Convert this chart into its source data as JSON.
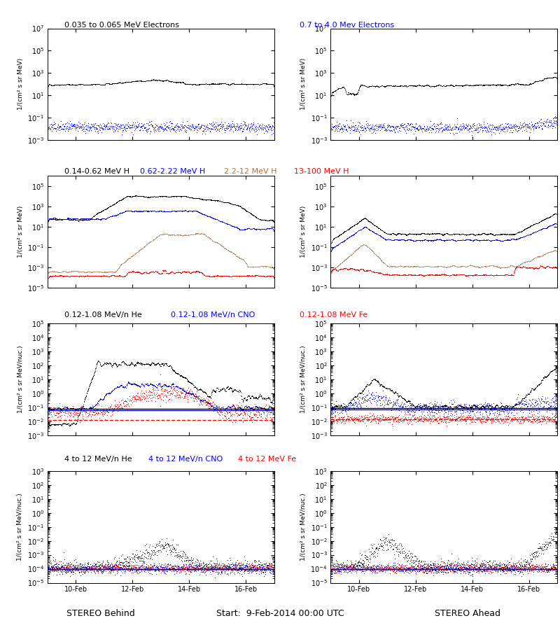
{
  "title_row1_left": "0.035 to 0.065 MeV Electrons",
  "title_row1_right": "0.7 to 4.0 Mev Electrons",
  "title_row1_right_color": "blue",
  "title_row2_parts": [
    "0.14-0.62 MeV H",
    "0.62-2.22 MeV H",
    "2.2-12 MeV H",
    "13-100 MeV H"
  ],
  "title_row2_colors": [
    "black",
    "blue",
    "#b87333",
    "red"
  ],
  "title_row3_parts": [
    "0.12-1.08 MeV/n He",
    "0.12-1.08 MeV/n CNO",
    "0.12-1.08 MeV Fe"
  ],
  "title_row3_colors": [
    "black",
    "blue",
    "red"
  ],
  "title_row4_parts": [
    "4 to 12 MeV/n He",
    "4 to 12 MeV/n CNO",
    "4 to 12 MeV Fe"
  ],
  "title_row4_colors": [
    "black",
    "blue",
    "red"
  ],
  "xlabel_center": "Start:  9-Feb-2014 00:00 UTC",
  "xlabel_left": "STEREO Behind",
  "xlabel_right": "STEREO Ahead",
  "ylabel_electrons": "1/(cm² s sr MeV)",
  "ylabel_heavy": "1/(cm² s sr MeV/nuc.)",
  "xtick_labels": [
    "10-Feb",
    "12-Feb",
    "14-Feb",
    "16-Feb"
  ],
  "row1_ylim": [
    0.001,
    10000000.0
  ],
  "row2_ylim": [
    1e-05,
    1000000.0
  ],
  "row3_ylim": [
    0.001,
    100000.0
  ],
  "row4_ylim": [
    1e-05,
    1000.0
  ],
  "brown_color": "#bc8f6f"
}
